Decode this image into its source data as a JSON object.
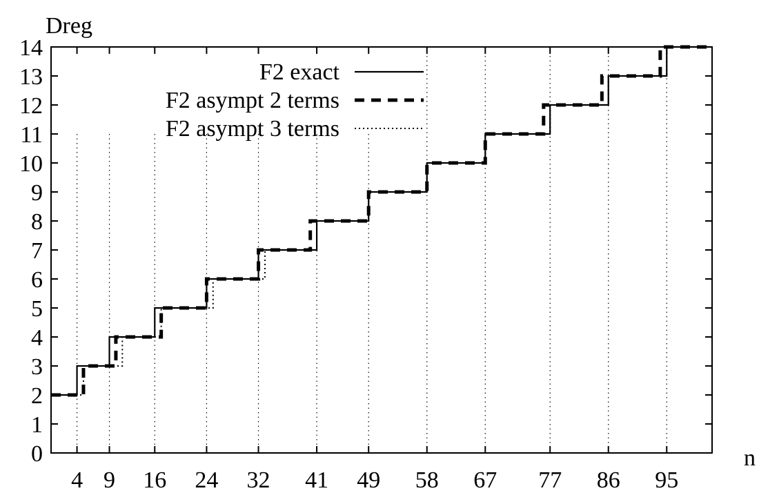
{
  "chart_data": {
    "type": "line",
    "title": "",
    "xlabel": "n",
    "ylabel": "Dreg",
    "xlim": [
      0,
      102
    ],
    "ylim": [
      0,
      14
    ],
    "x_ticks": [
      4,
      9,
      16,
      24,
      32,
      41,
      49,
      58,
      67,
      77,
      86,
      95
    ],
    "y_ticks": [
      0,
      1,
      2,
      3,
      4,
      5,
      6,
      7,
      8,
      9,
      10,
      11,
      12,
      13,
      14
    ],
    "grid": "vertical dotted lines at x ticks",
    "legend_position": "top-left",
    "series": [
      {
        "name": "F2 exact",
        "style": "solid",
        "steps": [
          {
            "x": 4,
            "y": 3
          },
          {
            "x": 9,
            "y": 4
          },
          {
            "x": 16,
            "y": 5
          },
          {
            "x": 24,
            "y": 6
          },
          {
            "x": 32,
            "y": 7
          },
          {
            "x": 41,
            "y": 8
          },
          {
            "x": 49,
            "y": 9
          },
          {
            "x": 58,
            "y": 10
          },
          {
            "x": 67,
            "y": 11
          },
          {
            "x": 77,
            "y": 12
          },
          {
            "x": 86,
            "y": 13
          },
          {
            "x": 95,
            "y": 14
          }
        ],
        "x_start": 0,
        "y_start": 2,
        "x_end": 102
      },
      {
        "name": "F2 asympt 2 terms",
        "style": "dashed",
        "steps": [
          {
            "x": 5,
            "y": 3
          },
          {
            "x": 10,
            "y": 4
          },
          {
            "x": 17,
            "y": 5
          },
          {
            "x": 24,
            "y": 6
          },
          {
            "x": 32,
            "y": 7
          },
          {
            "x": 40,
            "y": 8
          },
          {
            "x": 49,
            "y": 9
          },
          {
            "x": 58,
            "y": 10
          },
          {
            "x": 67,
            "y": 11
          },
          {
            "x": 76,
            "y": 12
          },
          {
            "x": 85,
            "y": 13
          },
          {
            "x": 94,
            "y": 14
          }
        ],
        "x_start": 0,
        "y_start": 2,
        "x_end": 102
      },
      {
        "name": "F2 asympt 3 terms",
        "style": "dotted",
        "steps": [
          {
            "x": 5,
            "y": 3
          },
          {
            "x": 11,
            "y": 4
          },
          {
            "x": 17,
            "y": 5
          },
          {
            "x": 25,
            "y": 6
          },
          {
            "x": 33,
            "y": 7
          },
          {
            "x": 41,
            "y": 8
          },
          {
            "x": 49,
            "y": 9
          },
          {
            "x": 58,
            "y": 10
          },
          {
            "x": 67,
            "y": 11
          },
          {
            "x": 77,
            "y": 12
          },
          {
            "x": 86,
            "y": 13
          },
          {
            "x": 95,
            "y": 14
          }
        ],
        "x_start": 0,
        "y_start": 2,
        "x_end": 102
      }
    ]
  }
}
